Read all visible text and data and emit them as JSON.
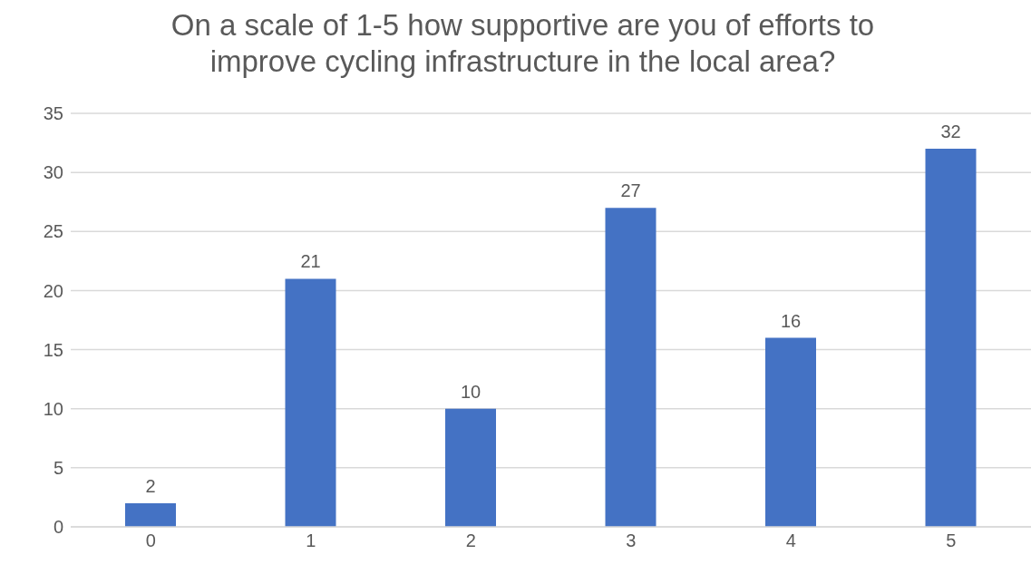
{
  "chart_data": {
    "type": "bar",
    "title": "On a scale of 1-5 how supportive are you of efforts to improve cycling infrastructure in the local area?",
    "categories": [
      "0",
      "1",
      "2",
      "3",
      "4",
      "5"
    ],
    "values": [
      2,
      21,
      10,
      27,
      16,
      32
    ],
    "color": "#4472c4",
    "ylim": [
      0,
      35
    ],
    "yticks": [
      0,
      5,
      10,
      15,
      20,
      25,
      30,
      35
    ],
    "grid": "y",
    "data_labels": true
  }
}
